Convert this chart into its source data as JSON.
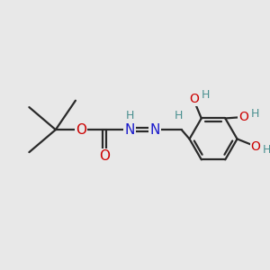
{
  "bg_color": "#e8e8e8",
  "bond_color": "#2a2a2a",
  "bond_width": 1.6,
  "atom_colors": {
    "O": "#cc0000",
    "N": "#1a1acc",
    "H_teal": "#4a9090",
    "C": "#2a2a2a"
  },
  "font_size_atom": 10,
  "font_size_H": 9,
  "xlim": [
    0,
    10
  ],
  "ylim": [
    0,
    10
  ]
}
